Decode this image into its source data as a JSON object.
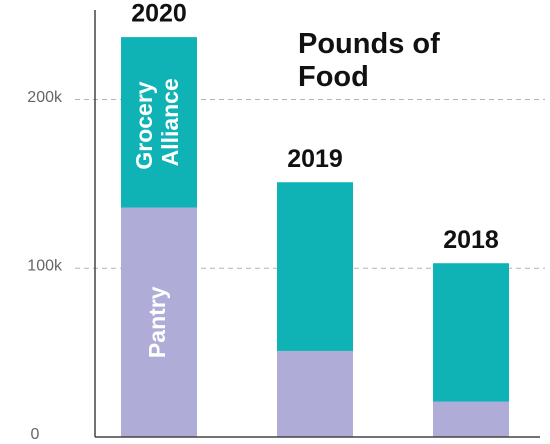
{
  "chart_data": {
    "type": "bar",
    "stacked": true,
    "title": "Pounds of Food",
    "categories": [
      "2020",
      "2019",
      "2018"
    ],
    "series": [
      {
        "name": "Pantry",
        "color": "#b0acd8",
        "values": [
          136000,
          51000,
          21000
        ]
      },
      {
        "name": "Grocery Alliance",
        "color": "#0fb3b5",
        "values": [
          101000,
          100000,
          82000
        ]
      }
    ],
    "ylim": [
      0,
      259000
    ],
    "yticks": [
      0,
      {
        "value": 100000,
        "label": "100k"
      },
      {
        "value": 200000,
        "label": "200k"
      }
    ],
    "grid": true
  }
}
